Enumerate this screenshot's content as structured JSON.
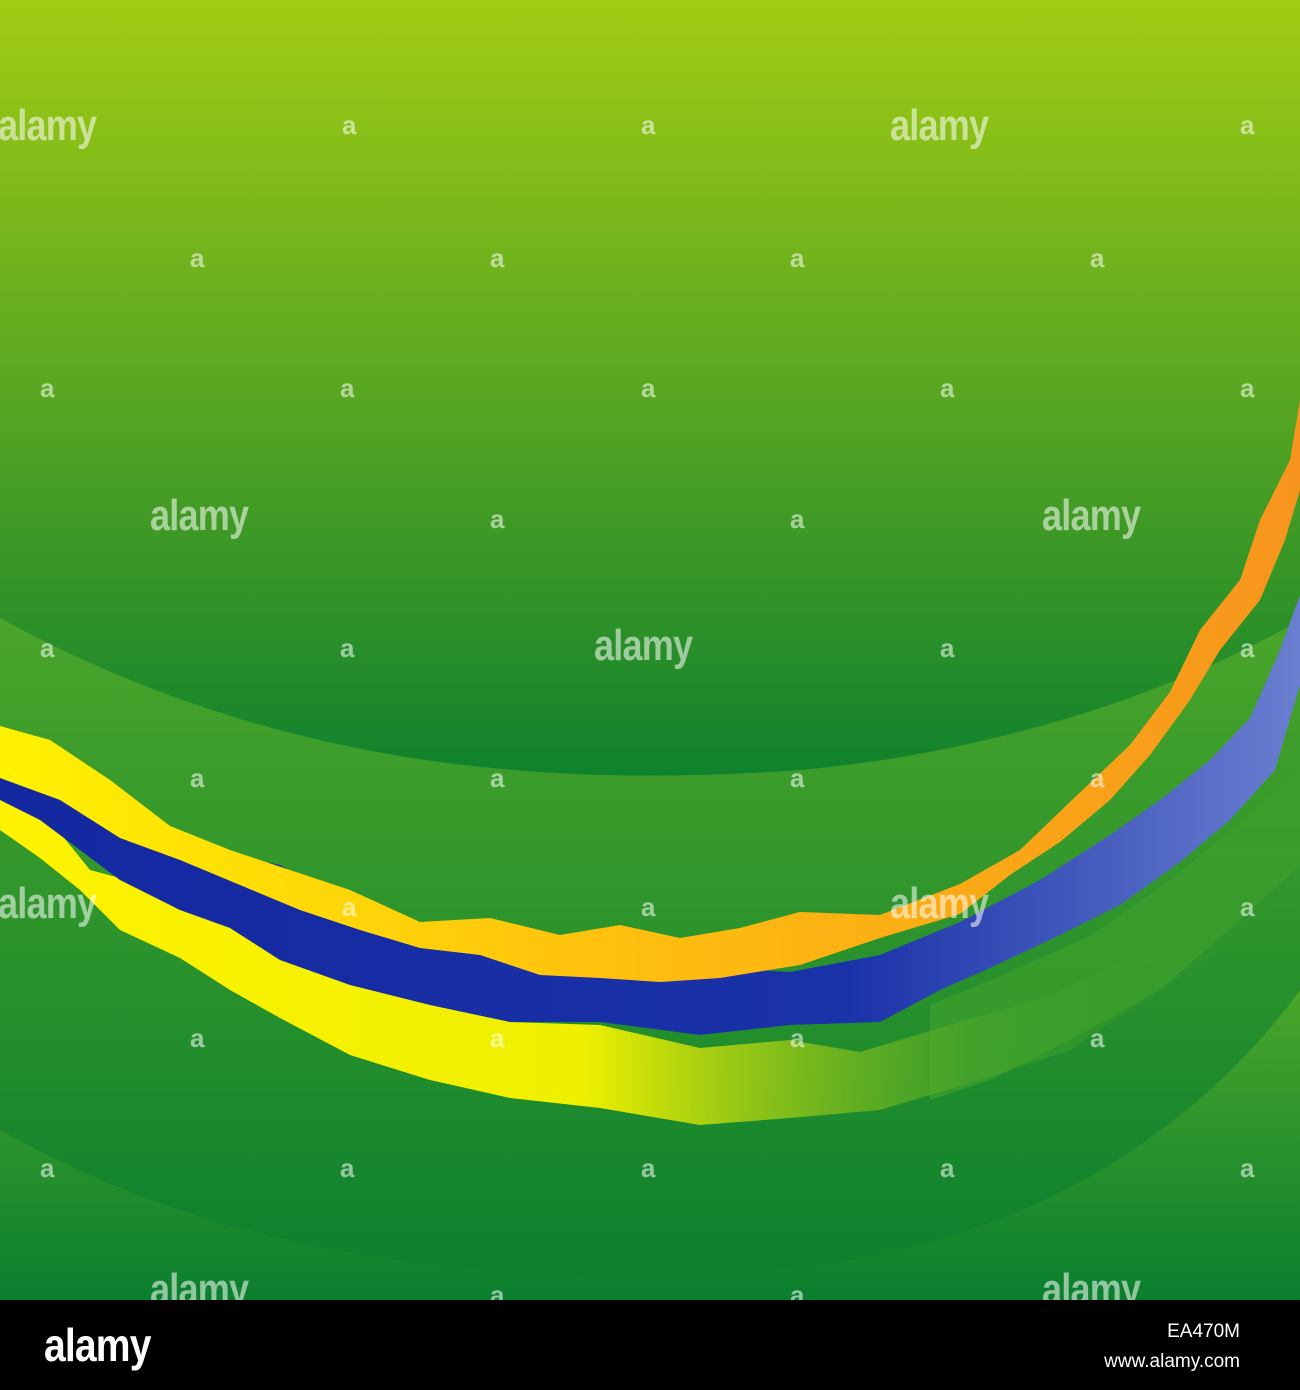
{
  "image": {
    "colors": {
      "background_top": "#a2cc14",
      "background_bottom": "#0a7f2e",
      "arc_light": "#4aa52a",
      "arc_dark": "#0a7f2e",
      "ribbon_orange": "#f7941d",
      "ribbon_gold": "#ffc20e",
      "ribbon_yellow": "#fff200",
      "ribbon_blue": "#1428a0",
      "ribbon_blue_light": "#6a7fd0",
      "footer": "#000000"
    }
  },
  "watermark": {
    "text": "alamy",
    "letter": "a"
  },
  "footer": {
    "logo": "alamy",
    "image_id": "EA470M",
    "url": "www.alamy.com"
  }
}
